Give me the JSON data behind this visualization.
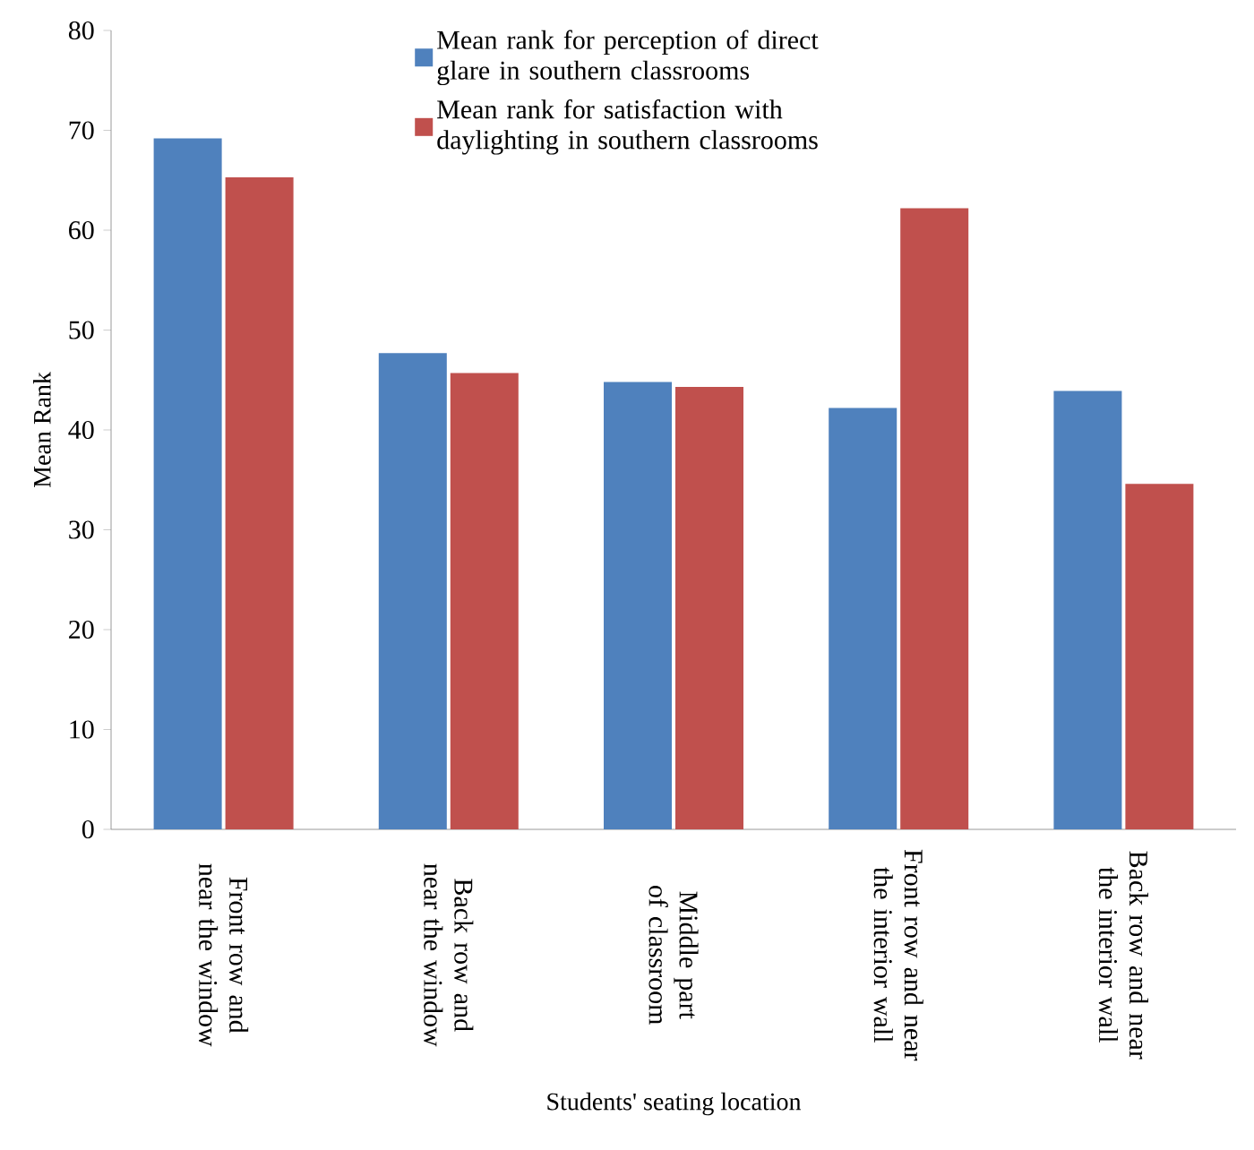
{
  "chart_data": {
    "type": "bar",
    "xlabel": "Students' seating location",
    "ylabel": "Mean Rank",
    "categories": [
      "Front row and near the window",
      "Back row and near the window",
      "Middle part of classroom",
      "Front row and near the interior wall",
      "Back row and near the interior wall"
    ],
    "series": [
      {
        "name": "Mean rank for perception of direct glare in southern classrooms",
        "color": "#4f81bd",
        "values": [
          69.2,
          47.7,
          44.8,
          42.2,
          43.9
        ]
      },
      {
        "name": "Mean rank for satisfaction with daylighting in southern classrooms",
        "color": "#c0504d",
        "values": [
          65.3,
          45.7,
          44.3,
          62.2,
          34.6
        ]
      }
    ],
    "ylim": [
      0,
      80
    ],
    "yticks": [
      0,
      10,
      20,
      30,
      40,
      50,
      60,
      70,
      80
    ],
    "legend": "top"
  }
}
